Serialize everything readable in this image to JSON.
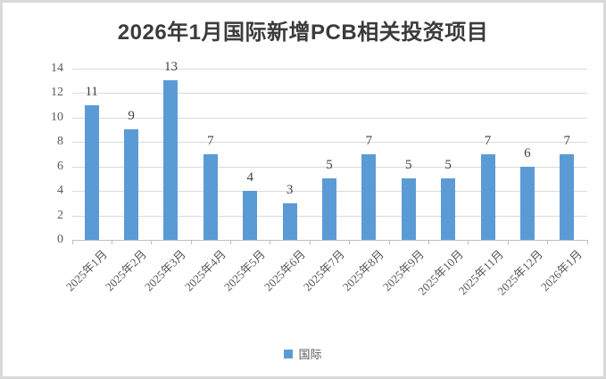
{
  "title": "2026年1月国际新增PCB相关投资项目",
  "chart_data": {
    "type": "bar",
    "title": "2026年1月国际新增PCB相关投资项目",
    "categories": [
      "2025年1月",
      "2025年2月",
      "2025年3月",
      "2025年4月",
      "2025年5月",
      "2025年6月",
      "2025年7月",
      "2025年8月",
      "2025年9月",
      "2025年10月",
      "2025年11月",
      "2025年12月",
      "2026年1月"
    ],
    "series": [
      {
        "name": "国际",
        "values": [
          11,
          9,
          13,
          7,
          4,
          3,
          5,
          7,
          5,
          5,
          7,
          6,
          7
        ]
      }
    ],
    "data_labels": [
      11,
      9,
      13,
      7,
      4,
      3,
      5,
      7,
      5,
      5,
      7,
      6,
      7
    ],
    "xlabel": "",
    "ylabel": "",
    "ylim": [
      0,
      14
    ],
    "yticks": [
      0,
      2,
      4,
      6,
      8,
      10,
      12,
      14
    ],
    "grid": true,
    "legend_position": "bottom",
    "bar_color": "#5B9BD5"
  },
  "legend": {
    "label": "国际",
    "swatch_color": "#5B9BD5"
  },
  "colors": {
    "bar": "#5B9BD5",
    "gridline": "#d9d9d9",
    "axis_line": "#bfbfbf",
    "axis_text": "#595959",
    "data_label_text": "#404040",
    "title_text": "#3b3b3b",
    "frame_border": "#d9d9d9"
  }
}
